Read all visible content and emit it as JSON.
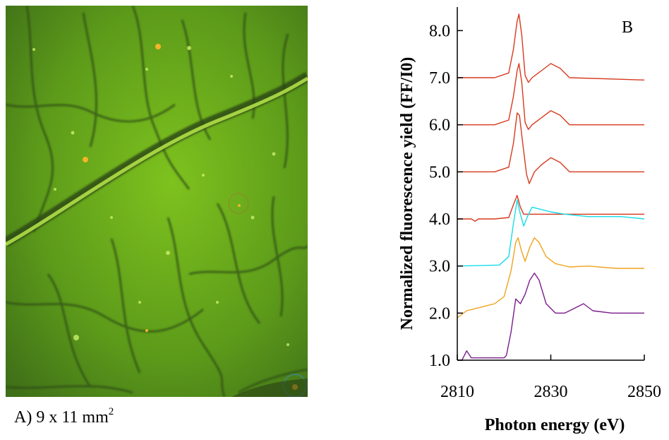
{
  "panel_a": {
    "caption_prefix": "A) 9 x 11 mm",
    "caption_exponent": "2"
  },
  "chart_data": {
    "type": "line",
    "panel_label": "B",
    "xlabel": "Photon energy (eV)",
    "ylabel": "Normalized fluorescence yield (FF/I0)",
    "xlim": [
      2810,
      2850
    ],
    "ylim": [
      1.0,
      8.5
    ],
    "x_ticks": [
      2810,
      2830,
      2850
    ],
    "y_ticks": [
      "1.0",
      "2.0",
      "3.0",
      "4.0",
      "5.0",
      "6.0",
      "7.0",
      "8.0"
    ],
    "grid": false,
    "colors": {
      "red": "#d63a1e",
      "cyan": "#16dce8",
      "orange": "#f0a21c",
      "purple": "#7a1c8c"
    },
    "series": [
      {
        "color": "red",
        "points": [
          [
            2810,
            7.0
          ],
          [
            2818,
            7.0
          ],
          [
            2821,
            7.1
          ],
          [
            2822,
            7.6
          ],
          [
            2822.8,
            8.2
          ],
          [
            2823.2,
            8.35
          ],
          [
            2823.8,
            7.9
          ],
          [
            2824.5,
            7.05
          ],
          [
            2825.2,
            6.9
          ],
          [
            2826,
            7.0
          ],
          [
            2828,
            7.15
          ],
          [
            2830,
            7.3
          ],
          [
            2832,
            7.2
          ],
          [
            2834,
            7.0
          ],
          [
            2850,
            6.95
          ]
        ]
      },
      {
        "color": "red",
        "points": [
          [
            2810,
            6.0
          ],
          [
            2818,
            6.0
          ],
          [
            2821,
            6.1
          ],
          [
            2822,
            6.6
          ],
          [
            2822.8,
            7.15
          ],
          [
            2823.2,
            7.3
          ],
          [
            2823.8,
            6.9
          ],
          [
            2824.5,
            6.05
          ],
          [
            2825.2,
            5.9
          ],
          [
            2826,
            6.0
          ],
          [
            2828,
            6.15
          ],
          [
            2830,
            6.3
          ],
          [
            2832,
            6.2
          ],
          [
            2834,
            6.0
          ],
          [
            2850,
            6.0
          ]
        ]
      },
      {
        "color": "red",
        "points": [
          [
            2810,
            5.0
          ],
          [
            2818,
            5.0
          ],
          [
            2821,
            5.1
          ],
          [
            2822,
            5.6
          ],
          [
            2822.8,
            6.25
          ],
          [
            2823.3,
            6.2
          ],
          [
            2824,
            5.6
          ],
          [
            2824.8,
            4.95
          ],
          [
            2825.4,
            4.75
          ],
          [
            2826.5,
            5.0
          ],
          [
            2828,
            5.15
          ],
          [
            2830,
            5.3
          ],
          [
            2832,
            5.2
          ],
          [
            2834,
            5.0
          ],
          [
            2850,
            5.0
          ]
        ]
      },
      {
        "color": "red",
        "points": [
          [
            2810,
            4.0
          ],
          [
            2813,
            4.0
          ],
          [
            2813.8,
            3.95
          ],
          [
            2814.5,
            4.0
          ],
          [
            2818,
            4.0
          ],
          [
            2821,
            4.03
          ],
          [
            2822,
            4.3
          ],
          [
            2822.8,
            4.5
          ],
          [
            2823.5,
            4.25
          ],
          [
            2824.2,
            4.1
          ],
          [
            2850,
            4.1
          ]
        ]
      },
      {
        "color": "cyan",
        "points": [
          [
            2810,
            3.0
          ],
          [
            2819,
            3.02
          ],
          [
            2821,
            3.2
          ],
          [
            2822,
            3.9
          ],
          [
            2822.8,
            4.4
          ],
          [
            2823.5,
            4.1
          ],
          [
            2824.2,
            3.85
          ],
          [
            2825,
            4.05
          ],
          [
            2826,
            4.25
          ],
          [
            2828,
            4.2
          ],
          [
            2830,
            4.15
          ],
          [
            2833,
            4.1
          ],
          [
            2838,
            4.05
          ],
          [
            2845,
            4.05
          ],
          [
            2850,
            4.0
          ]
        ]
      },
      {
        "color": "orange",
        "points": [
          [
            2810,
            1.9
          ],
          [
            2812,
            2.05
          ],
          [
            2814,
            2.1
          ],
          [
            2816,
            2.15
          ],
          [
            2818,
            2.2
          ],
          [
            2820,
            2.35
          ],
          [
            2821.5,
            2.9
          ],
          [
            2822.5,
            3.5
          ],
          [
            2823,
            3.6
          ],
          [
            2823.8,
            3.3
          ],
          [
            2824.5,
            3.1
          ],
          [
            2825.5,
            3.4
          ],
          [
            2826.5,
            3.6
          ],
          [
            2827.5,
            3.5
          ],
          [
            2829,
            3.2
          ],
          [
            2831,
            3.05
          ],
          [
            2834,
            2.98
          ],
          [
            2838,
            3.0
          ],
          [
            2844,
            2.95
          ],
          [
            2850,
            2.95
          ]
        ]
      },
      {
        "color": "purple",
        "points": [
          [
            2810,
            1.0
          ],
          [
            2811,
            1.0
          ],
          [
            2812,
            1.2
          ],
          [
            2813,
            1.05
          ],
          [
            2816,
            1.05
          ],
          [
            2820,
            1.05
          ],
          [
            2820.5,
            1.1
          ],
          [
            2821.5,
            1.6
          ],
          [
            2822.5,
            2.3
          ],
          [
            2823.5,
            2.2
          ],
          [
            2824.5,
            2.4
          ],
          [
            2825.5,
            2.7
          ],
          [
            2826.5,
            2.85
          ],
          [
            2827.5,
            2.7
          ],
          [
            2829,
            2.2
          ],
          [
            2831,
            2.0
          ],
          [
            2833,
            2.0
          ],
          [
            2835,
            2.1
          ],
          [
            2837,
            2.2
          ],
          [
            2839,
            2.05
          ],
          [
            2843,
            2.0
          ],
          [
            2850,
            2.0
          ]
        ]
      }
    ]
  }
}
